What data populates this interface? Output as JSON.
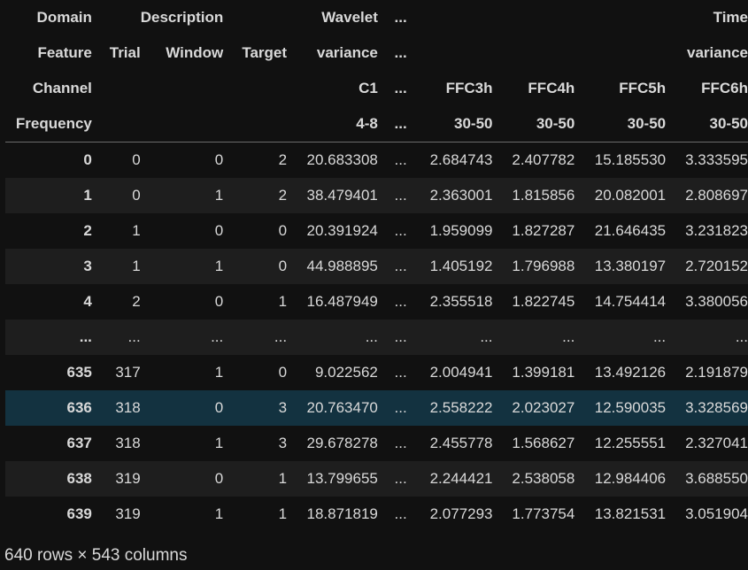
{
  "header_rows": [
    [
      "Domain",
      "",
      "Description",
      "",
      "Wavelet",
      "...",
      "",
      "",
      "",
      "Time"
    ],
    [
      "Feature",
      "Trial",
      "Window",
      "Target",
      "variance",
      "...",
      "",
      "",
      "",
      "variance"
    ],
    [
      "Channel",
      "",
      "",
      "",
      "C1",
      "...",
      "FFC3h",
      "FFC4h",
      "FFC5h",
      "FFC6h"
    ],
    [
      "Frequency",
      "",
      "",
      "",
      "4-8",
      "...",
      "30-50",
      "30-50",
      "30-50",
      "30-50"
    ]
  ],
  "rows": [
    [
      "0",
      "0",
      "0",
      "2",
      "20.683308",
      "...",
      "2.684743",
      "2.407782",
      "15.185530",
      "3.333595"
    ],
    [
      "1",
      "0",
      "1",
      "2",
      "38.479401",
      "...",
      "2.363001",
      "1.815856",
      "20.082001",
      "2.808697"
    ],
    [
      "2",
      "1",
      "0",
      "0",
      "20.391924",
      "...",
      "1.959099",
      "1.827287",
      "21.646435",
      "3.231823"
    ],
    [
      "3",
      "1",
      "1",
      "0",
      "44.988895",
      "...",
      "1.405192",
      "1.796988",
      "13.380197",
      "2.720152"
    ],
    [
      "4",
      "2",
      "0",
      "1",
      "16.487949",
      "...",
      "2.355518",
      "1.822745",
      "14.754414",
      "3.380056"
    ],
    [
      "...",
      "...",
      "...",
      "...",
      "...",
      "...",
      "...",
      "...",
      "...",
      "..."
    ],
    [
      "635",
      "317",
      "1",
      "0",
      "9.022562",
      "...",
      "2.004941",
      "1.399181",
      "13.492126",
      "2.191879"
    ],
    [
      "636",
      "318",
      "0",
      "3",
      "20.763470",
      "...",
      "2.558222",
      "2.023027",
      "12.590035",
      "3.328569"
    ],
    [
      "637",
      "318",
      "1",
      "3",
      "29.678278",
      "...",
      "2.455778",
      "1.568627",
      "12.255551",
      "2.327041"
    ],
    [
      "638",
      "319",
      "0",
      "1",
      "13.799655",
      "...",
      "2.244421",
      "2.538058",
      "12.984406",
      "3.688550"
    ],
    [
      "639",
      "319",
      "1",
      "1",
      "18.871819",
      "...",
      "2.077293",
      "1.773754",
      "13.821531",
      "3.051904"
    ]
  ],
  "highlighted_row": 7,
  "footer": "640 rows × 543 columns",
  "colors": {
    "background": "#111111",
    "stripe": "#1e1e1e",
    "highlight": "#133240",
    "text": "#d9d9d9"
  }
}
